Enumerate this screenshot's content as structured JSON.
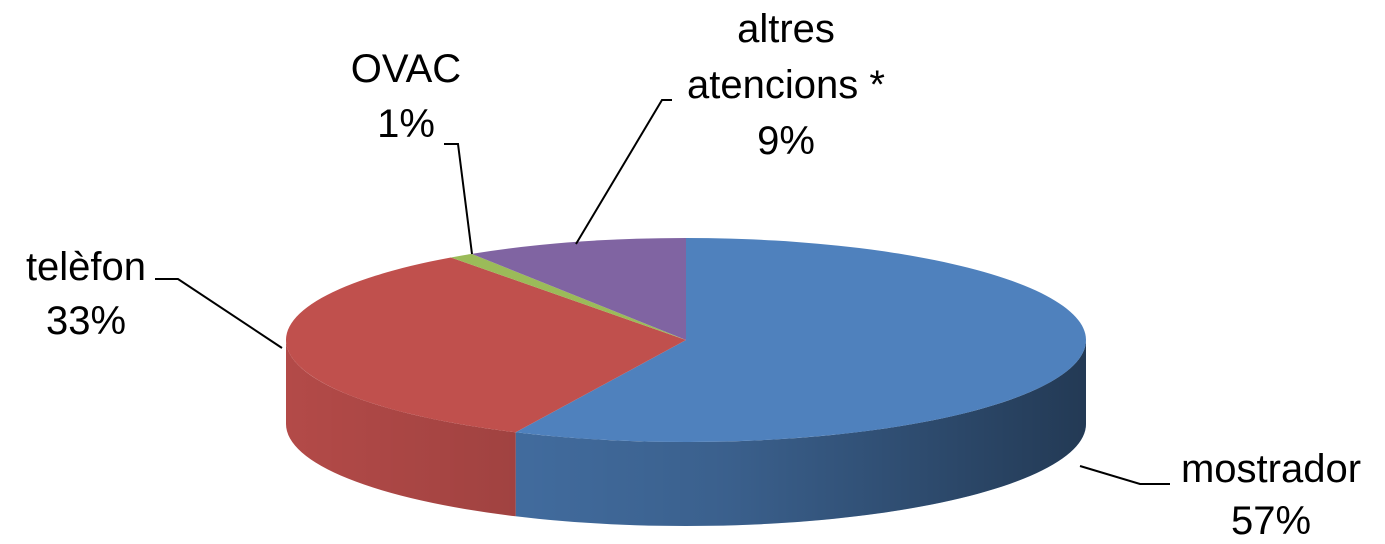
{
  "chart_data": {
    "type": "pie",
    "style": "3d",
    "title": "",
    "slices": [
      {
        "label_lines": [
          "mostrador"
        ],
        "value": 57,
        "value_label": "57%",
        "color": "#4F81BD"
      },
      {
        "label_lines": [
          "telèfon"
        ],
        "value": 33,
        "value_label": "33%",
        "color": "#C0504D"
      },
      {
        "label_lines": [
          "OVAC"
        ],
        "value": 1,
        "value_label": "1%",
        "color": "#9BBB59"
      },
      {
        "label_lines": [
          "altres",
          "atencions *"
        ],
        "value": 9,
        "value_label": "9%",
        "color": "#8064A2"
      }
    ],
    "legend": "none"
  }
}
